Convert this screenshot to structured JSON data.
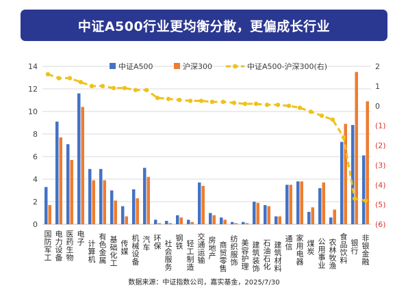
{
  "title": "中证A500行业更均衡分散，更偏成长行业",
  "source": "数据来源：中证指数公司，嘉实基金，2025/7/30",
  "colors": {
    "title_bg": "#2b3891",
    "gridline": "#d9d9d9",
    "axis_text": "#404040"
  },
  "chart_data": {
    "type": "bar",
    "categories": [
      "国防军工",
      "电力设备",
      "医药生物",
      "电子",
      "计算机",
      "有色金属",
      "基础化工",
      "传媒",
      "机械设备",
      "汽车",
      "环保",
      "社会服务",
      "钢铁",
      "轻工制造",
      "交通运输",
      "房地产",
      "商贸零售",
      "纺织服饰",
      "美容护理",
      "建筑装饰",
      "石油石化",
      "建筑材料",
      "通信",
      "家用电器",
      "煤炭",
      "公用事业",
      "农林牧渔",
      "食品饮料",
      "银行",
      "非银金融"
    ],
    "series": [
      {
        "name": "中证A500",
        "type": "bar",
        "axis": "left",
        "color": "#4472c4",
        "values": [
          3.3,
          9.1,
          7.1,
          11.6,
          4.9,
          4.9,
          3.0,
          1.6,
          3.1,
          5.0,
          0.4,
          0.3,
          0.8,
          0.4,
          3.7,
          1.0,
          0.6,
          0.2,
          0.2,
          2.0,
          1.7,
          0.7,
          3.5,
          3.8,
          1.1,
          3.2,
          0.6,
          7.3,
          8.8,
          6.1
        ]
      },
      {
        "name": "沪深300",
        "type": "bar",
        "axis": "left",
        "color": "#ed7d31",
        "values": [
          1.7,
          7.7,
          5.7,
          10.4,
          3.9,
          3.9,
          2.1,
          0.7,
          2.3,
          4.2,
          0.1,
          0.1,
          0.6,
          0.2,
          3.4,
          0.8,
          0.4,
          0.1,
          0.1,
          1.9,
          1.6,
          0.7,
          3.5,
          3.8,
          1.5,
          3.7,
          1.3,
          8.9,
          13.5,
          10.9
        ]
      },
      {
        "name": "中证A500-沪深300(右)",
        "type": "line",
        "axis": "right",
        "style": "dashed",
        "markers": true,
        "color": "#edc21b",
        "values": [
          1.6,
          1.4,
          1.4,
          1.2,
          1.0,
          1.0,
          0.9,
          0.9,
          0.8,
          0.8,
          0.4,
          0.35,
          0.3,
          0.25,
          0.25,
          0.2,
          0.2,
          0.15,
          0.1,
          0.1,
          0.05,
          0.05,
          0.0,
          -0.1,
          -0.3,
          -0.5,
          -0.7,
          -1.6,
          -4.7,
          -4.8
        ]
      }
    ],
    "y_left": {
      "lim": [
        0,
        14
      ],
      "ticks": [
        {
          "value": 0,
          "label": "0"
        },
        {
          "value": 2,
          "label": "2"
        },
        {
          "value": 4,
          "label": "4"
        },
        {
          "value": 6,
          "label": "6"
        },
        {
          "value": 8,
          "label": "8"
        },
        {
          "value": 10,
          "label": "10"
        },
        {
          "value": 12,
          "label": "12"
        },
        {
          "value": 14,
          "label": "14"
        }
      ]
    },
    "y_right": {
      "lim": [
        -6,
        2
      ],
      "negative_color": "#e0312a",
      "ticks": [
        {
          "value": 2,
          "label": "2"
        },
        {
          "value": 1,
          "label": "1"
        },
        {
          "value": 0,
          "label": "0"
        },
        {
          "value": -1,
          "label": "(1)"
        },
        {
          "value": -2,
          "label": "(2)"
        },
        {
          "value": -3,
          "label": "(3)"
        },
        {
          "value": -4,
          "label": "(4)"
        },
        {
          "value": -5,
          "label": "(5)"
        },
        {
          "value": -6,
          "label": "(6)"
        }
      ]
    },
    "grid": true,
    "legend": "top-center"
  }
}
